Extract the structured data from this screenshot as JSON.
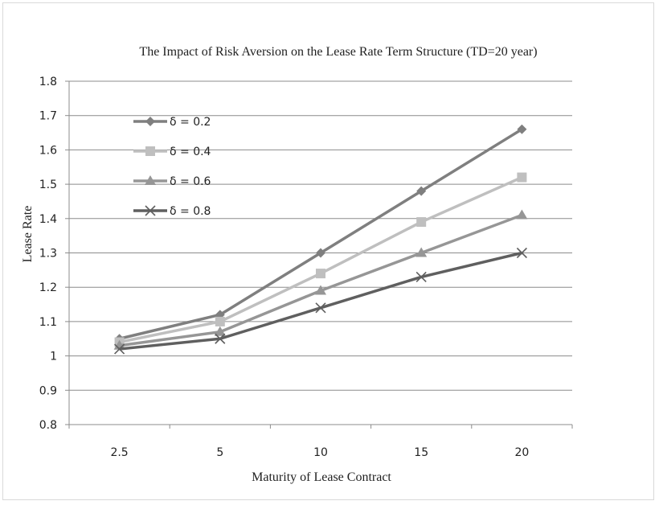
{
  "chart_data": {
    "type": "line",
    "title": "The Impact of Risk Aversion on the Lease Rate Term Structure (TD=20 year)",
    "xlabel": "Maturity of Lease Contract",
    "ylabel": "Lease Rate",
    "categories": [
      "2.5",
      "5",
      "10",
      "15",
      "20"
    ],
    "ylim": [
      0.8,
      1.8
    ],
    "yticks": [
      "0.8",
      "0.9",
      "1",
      "1.1",
      "1.2",
      "1.3",
      "1.4",
      "1.5",
      "1.6",
      "1.7",
      "1.8"
    ],
    "grid": true,
    "legend_position": "top-left inside plot",
    "series": [
      {
        "name": "δ =  0.2",
        "values": [
          1.05,
          1.12,
          1.3,
          1.48,
          1.66
        ],
        "color": "#7f7f7f",
        "marker": "diamond"
      },
      {
        "name": "δ =  0.4",
        "values": [
          1.04,
          1.1,
          1.24,
          1.39,
          1.52
        ],
        "color": "#bfbfbf",
        "marker": "square"
      },
      {
        "name": "δ =  0.6",
        "values": [
          1.03,
          1.07,
          1.19,
          1.3,
          1.41
        ],
        "color": "#969696",
        "marker": "triangle"
      },
      {
        "name": "δ =  0.8",
        "values": [
          1.02,
          1.05,
          1.14,
          1.23,
          1.3
        ],
        "color": "#5f5f5f",
        "marker": "x"
      }
    ]
  }
}
